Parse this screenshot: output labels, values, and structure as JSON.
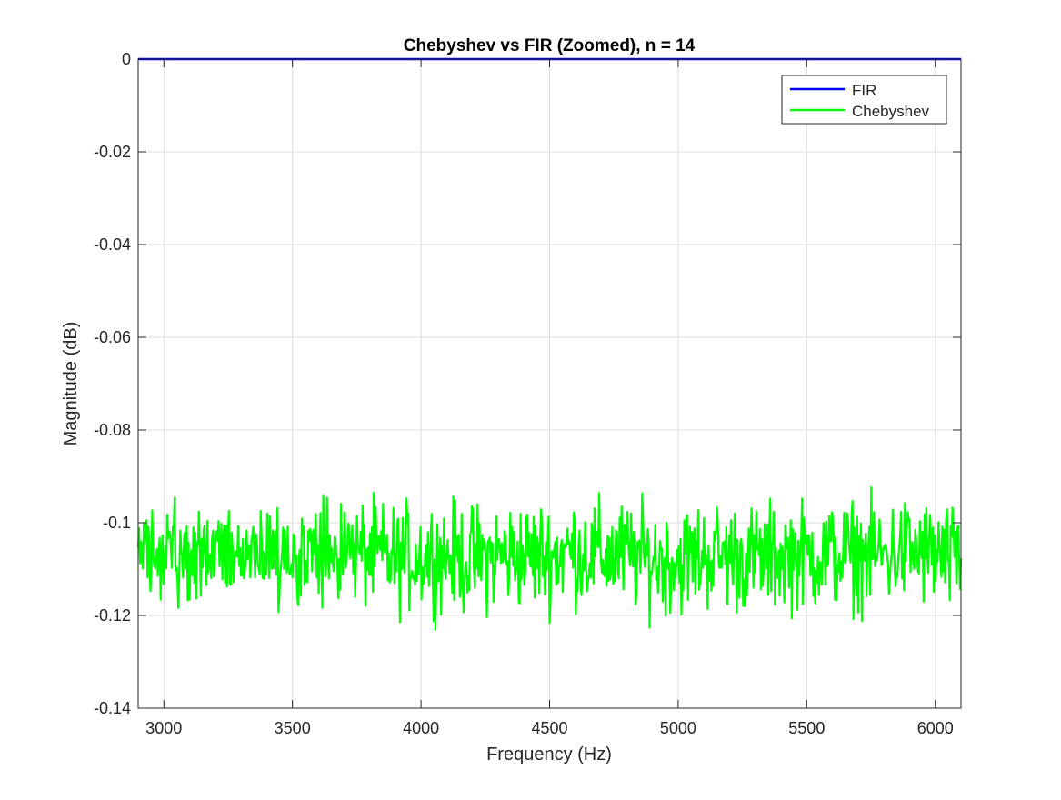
{
  "chart_data": {
    "type": "line",
    "title": "Chebyshev vs FIR (Zoomed), n = 14",
    "xlabel": "Frequency (Hz)",
    "ylabel": "Magnitude (dB)",
    "xlim": [
      2900,
      6100
    ],
    "ylim": [
      -0.14,
      0
    ],
    "xticks": [
      3000,
      3500,
      4000,
      4500,
      5000,
      5500,
      6000
    ],
    "xtick_labels": [
      "3000",
      "3500",
      "4000",
      "4500",
      "5000",
      "5500",
      "6000"
    ],
    "yticks": [
      0,
      -0.02,
      -0.04,
      -0.06,
      -0.08,
      -0.1,
      -0.12,
      -0.14
    ],
    "ytick_labels": [
      "0",
      "-0.02",
      "-0.04",
      "-0.06",
      "-0.08",
      "-0.1",
      "-0.12",
      "-0.14"
    ],
    "grid": true,
    "legend_position": "top-right",
    "series": [
      {
        "name": "FIR",
        "color": "#0000ff",
        "x": [
          2900,
          6100
        ],
        "y": [
          0,
          0
        ]
      },
      {
        "name": "Chebyshev",
        "color": "#00ff00",
        "x": [
          2900,
          3000,
          3100,
          3200,
          3300,
          3400,
          3500,
          3600,
          3700,
          3800,
          3900,
          4000,
          4100,
          4200,
          4300,
          4400,
          4500,
          4600,
          4700,
          4800,
          4900,
          5000,
          5100,
          5200,
          5300,
          5400,
          5500,
          5600,
          5700,
          5800,
          5900,
          6000,
          6100
        ],
        "y": [
          -0.106,
          -0.107,
          -0.107,
          -0.107,
          -0.106,
          -0.106,
          -0.106,
          -0.107,
          -0.106,
          -0.107,
          -0.108,
          -0.107,
          -0.107,
          -0.108,
          -0.107,
          -0.107,
          -0.107,
          -0.106,
          -0.107,
          -0.107,
          -0.108,
          -0.108,
          -0.107,
          -0.107,
          -0.108,
          -0.107,
          -0.107,
          -0.107,
          -0.107,
          -0.107,
          -0.106,
          -0.107,
          -0.109
        ],
        "range": [
          -0.126,
          -0.089
        ]
      }
    ]
  }
}
